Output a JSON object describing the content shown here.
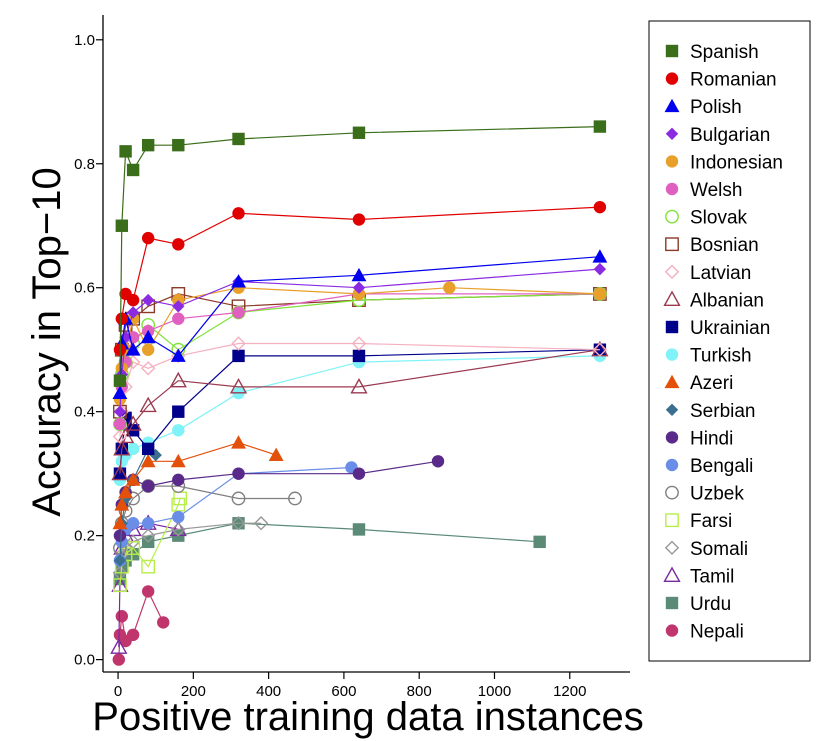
{
  "chart_data": {
    "type": "line",
    "title": "",
    "xlabel": "Positive training data instances",
    "ylabel": "Accuracy in Top−10",
    "xlim": [
      -40,
      1360
    ],
    "ylim": [
      -0.02,
      1.04
    ],
    "xticks": [
      "0",
      "200",
      "400",
      "600",
      "800",
      "1000",
      "1200"
    ],
    "xtick_values": [
      0,
      200,
      400,
      600,
      800,
      1000,
      1200
    ],
    "yticks": [
      "0.0",
      "0.2",
      "0.4",
      "0.6",
      "0.8",
      "1.0"
    ],
    "ytick_values": [
      0,
      0.2,
      0.4,
      0.6,
      0.8,
      1.0
    ],
    "grid": false,
    "legend_position": "right",
    "series": [
      {
        "name": "Spanish",
        "color": "#3a6e1a",
        "marker": "square-filled",
        "x": [
          5,
          10,
          20,
          40,
          80,
          160,
          320,
          640,
          1280
        ],
        "y": [
          0.45,
          0.7,
          0.82,
          0.79,
          0.83,
          0.83,
          0.84,
          0.85,
          0.86
        ]
      },
      {
        "name": "Romanian",
        "color": "#e00000",
        "marker": "circle-filled",
        "x": [
          5,
          10,
          20,
          40,
          80,
          160,
          320,
          640,
          1280
        ],
        "y": [
          0.5,
          0.55,
          0.59,
          0.58,
          0.68,
          0.67,
          0.72,
          0.71,
          0.73
        ]
      },
      {
        "name": "Polish",
        "color": "#0000ee",
        "marker": "triangle-filled",
        "x": [
          5,
          10,
          20,
          40,
          80,
          160,
          320,
          640,
          1280
        ],
        "y": [
          0.43,
          0.51,
          0.55,
          0.5,
          0.52,
          0.49,
          0.61,
          0.62,
          0.65
        ]
      },
      {
        "name": "Bulgarian",
        "color": "#8a2be2",
        "marker": "diamond-filled",
        "x": [
          5,
          10,
          20,
          40,
          80,
          160,
          320,
          640,
          1280
        ],
        "y": [
          0.4,
          0.46,
          0.52,
          0.56,
          0.58,
          0.57,
          0.61,
          0.6,
          0.63
        ]
      },
      {
        "name": "Indonesian",
        "color": "#e9a02a",
        "marker": "circle-filled",
        "x": [
          5,
          10,
          20,
          40,
          80,
          160,
          320,
          640,
          880,
          1280
        ],
        "y": [
          0.42,
          0.47,
          0.5,
          0.55,
          0.5,
          0.58,
          0.6,
          0.59,
          0.6,
          0.59
        ]
      },
      {
        "name": "Welsh",
        "color": "#e060c0",
        "marker": "circle-filled",
        "x": [
          5,
          10,
          20,
          40,
          80,
          160,
          320,
          640,
          1280
        ],
        "y": [
          0.38,
          0.44,
          0.48,
          0.52,
          0.53,
          0.55,
          0.56,
          0.59,
          0.59
        ]
      },
      {
        "name": "Slovak",
        "color": "#7ee23a",
        "marker": "circle-open",
        "x": [
          5,
          10,
          20,
          40,
          80,
          160,
          320,
          640,
          1280
        ],
        "y": [
          0.38,
          0.46,
          0.48,
          0.51,
          0.54,
          0.5,
          0.56,
          0.58,
          0.59
        ]
      },
      {
        "name": "Bosnian",
        "color": "#8b3a2a",
        "marker": "square-open",
        "x": [
          5,
          10,
          20,
          40,
          80,
          160,
          320,
          640,
          1280
        ],
        "y": [
          0.4,
          0.5,
          0.54,
          0.55,
          0.57,
          0.59,
          0.57,
          0.58,
          0.59
        ]
      },
      {
        "name": "Latvian",
        "color": "#f5b0c0",
        "marker": "diamond-open",
        "x": [
          5,
          10,
          20,
          40,
          80,
          160,
          320,
          640,
          1280
        ],
        "y": [
          0.36,
          0.4,
          0.44,
          0.48,
          0.47,
          0.49,
          0.51,
          0.51,
          0.5
        ]
      },
      {
        "name": "Albanian",
        "color": "#9b3a50",
        "marker": "triangle-open",
        "x": [
          5,
          10,
          20,
          40,
          80,
          160,
          320,
          640,
          1280
        ],
        "y": [
          0.3,
          0.34,
          0.36,
          0.38,
          0.41,
          0.45,
          0.44,
          0.44,
          0.5
        ]
      },
      {
        "name": "Ukrainian",
        "color": "#00008b",
        "marker": "square-filled",
        "x": [
          5,
          10,
          20,
          40,
          80,
          160,
          320,
          640,
          1280
        ],
        "y": [
          0.3,
          0.34,
          0.39,
          0.37,
          0.34,
          0.4,
          0.49,
          0.49,
          0.5
        ]
      },
      {
        "name": "Turkish",
        "color": "#7ff3f7",
        "marker": "circle-filled",
        "x": [
          5,
          10,
          20,
          40,
          80,
          160,
          320,
          640,
          1280
        ],
        "y": [
          0.29,
          0.32,
          0.33,
          0.34,
          0.35,
          0.37,
          0.43,
          0.48,
          0.49
        ]
      },
      {
        "name": "Azeri",
        "color": "#e2500a",
        "marker": "triangle-filled",
        "x": [
          5,
          10,
          20,
          40,
          80,
          160,
          320,
          420
        ],
        "y": [
          0.22,
          0.25,
          0.27,
          0.29,
          0.32,
          0.32,
          0.35,
          0.33
        ]
      },
      {
        "name": "Serbian",
        "color": "#3b6e8f",
        "marker": "diamond-filled",
        "x": [
          5,
          10,
          20,
          40,
          80,
          100
        ],
        "y": [
          0.16,
          0.22,
          0.26,
          0.29,
          0.34,
          0.33
        ]
      },
      {
        "name": "Hindi",
        "color": "#5a2a8a",
        "marker": "circle-filled",
        "x": [
          5,
          10,
          20,
          40,
          80,
          160,
          320,
          640,
          850
        ],
        "y": [
          0.2,
          0.25,
          0.27,
          0.29,
          0.28,
          0.29,
          0.3,
          0.3,
          0.32
        ]
      },
      {
        "name": "Bengali",
        "color": "#6a8ee8",
        "marker": "circle-filled",
        "x": [
          5,
          10,
          20,
          40,
          80,
          160,
          320,
          620
        ],
        "y": [
          0.16,
          0.19,
          0.21,
          0.22,
          0.22,
          0.23,
          0.3,
          0.31
        ]
      },
      {
        "name": "Uzbek",
        "color": "#808080",
        "marker": "circle-open",
        "x": [
          5,
          10,
          20,
          40,
          80,
          160,
          320,
          470
        ],
        "y": [
          0.18,
          0.22,
          0.24,
          0.26,
          0.28,
          0.28,
          0.26,
          0.26
        ]
      },
      {
        "name": "Farsi",
        "color": "#b8ee4a",
        "marker": "square-open",
        "x": [
          5,
          10,
          20,
          40,
          80,
          160,
          165
        ],
        "y": [
          0.12,
          0.15,
          0.17,
          0.18,
          0.15,
          0.25,
          0.26
        ]
      },
      {
        "name": "Somali",
        "color": "#999999",
        "marker": "diamond-open",
        "x": [
          5,
          10,
          20,
          40,
          80,
          160,
          320,
          380
        ],
        "y": [
          0.14,
          0.17,
          0.18,
          0.19,
          0.2,
          0.21,
          0.22,
          0.22
        ]
      },
      {
        "name": "Tamil",
        "color": "#7a2aa0",
        "marker": "triangle-open",
        "x": [
          2,
          5,
          10,
          20,
          40,
          80,
          160
        ],
        "y": [
          0.02,
          0.12,
          0.18,
          0.2,
          0.21,
          0.22,
          0.21
        ]
      },
      {
        "name": "Urdu",
        "color": "#5b8a76",
        "marker": "square-filled",
        "x": [
          5,
          10,
          20,
          40,
          80,
          160,
          320,
          640,
          1120
        ],
        "y": [
          0.13,
          0.15,
          0.16,
          0.17,
          0.19,
          0.2,
          0.22,
          0.21,
          0.19
        ]
      },
      {
        "name": "Nepali",
        "color": "#c0366c",
        "marker": "circle-filled",
        "x": [
          2,
          5,
          10,
          20,
          40,
          80,
          120
        ],
        "y": [
          0.0,
          0.04,
          0.07,
          0.03,
          0.04,
          0.11,
          0.06
        ]
      }
    ]
  }
}
